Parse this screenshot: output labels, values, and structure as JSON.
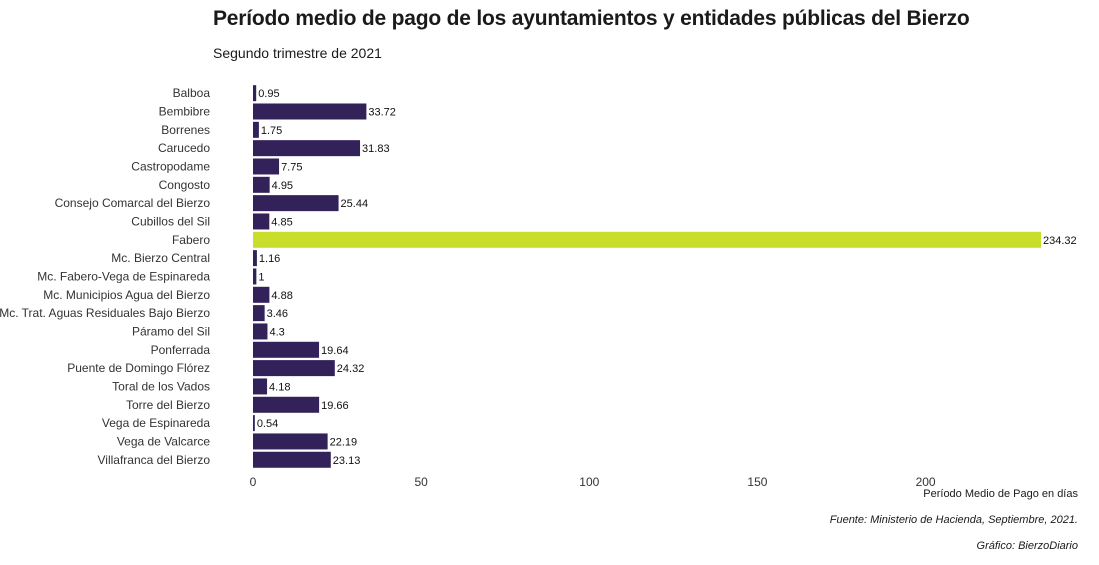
{
  "chart_data": {
    "type": "bar",
    "orientation": "horizontal",
    "title": "Período medio de pago de los ayuntamientos y entidades públicas del Bierzo",
    "subtitle": "Segundo trimestre de 2021",
    "xlabel": "Período Medio de Pago en días",
    "ylabel": "",
    "xlim": [
      0,
      234.32
    ],
    "xticks": [
      0,
      50,
      100,
      150,
      200
    ],
    "grid": false,
    "categories": [
      "Balboa",
      "Bembibre",
      "Borrenes",
      "Carucedo",
      "Castropodame",
      "Congosto",
      "Consejo Comarcal del Bierzo",
      "Cubillos del Sil",
      "Fabero",
      "Mc. Bierzo Central",
      "Mc. Fabero-Vega de Espinareda",
      "Mc. Municipios Agua del Bierzo",
      "Mc. Trat. Aguas Residuales Bajo Bierzo",
      "Páramo del Sil",
      "Ponferrada",
      "Puente de Domingo Flórez",
      "Toral de los Vados",
      "Torre del Bierzo",
      "Vega de Espinareda",
      "Vega de Valcarce",
      "Villafranca del Bierzo"
    ],
    "values": [
      0.95,
      33.72,
      1.75,
      31.83,
      7.75,
      4.95,
      25.44,
      4.85,
      234.32,
      1.16,
      1,
      4.88,
      3.46,
      4.3,
      19.64,
      24.32,
      4.18,
      19.66,
      0.54,
      22.19,
      23.13
    ],
    "value_labels": [
      "0.95",
      "33.72",
      "1.75",
      "31.83",
      "7.75",
      "4.95",
      "25.44",
      "4.85",
      "234.32",
      "1.16",
      "1",
      "4.88",
      "3.46",
      "4.3",
      "19.64",
      "24.32",
      "4.18",
      "19.66",
      "0.54",
      "22.19",
      "23.13"
    ],
    "colors": {
      "default": "#33215a",
      "highlight": "#c9de2c"
    },
    "highlight": "Fabero"
  },
  "captions": {
    "source": "Fuente: Ministerio de Hacienda, Septiembre, 2021.",
    "credit": "Gráfico: BierzoDiario"
  }
}
